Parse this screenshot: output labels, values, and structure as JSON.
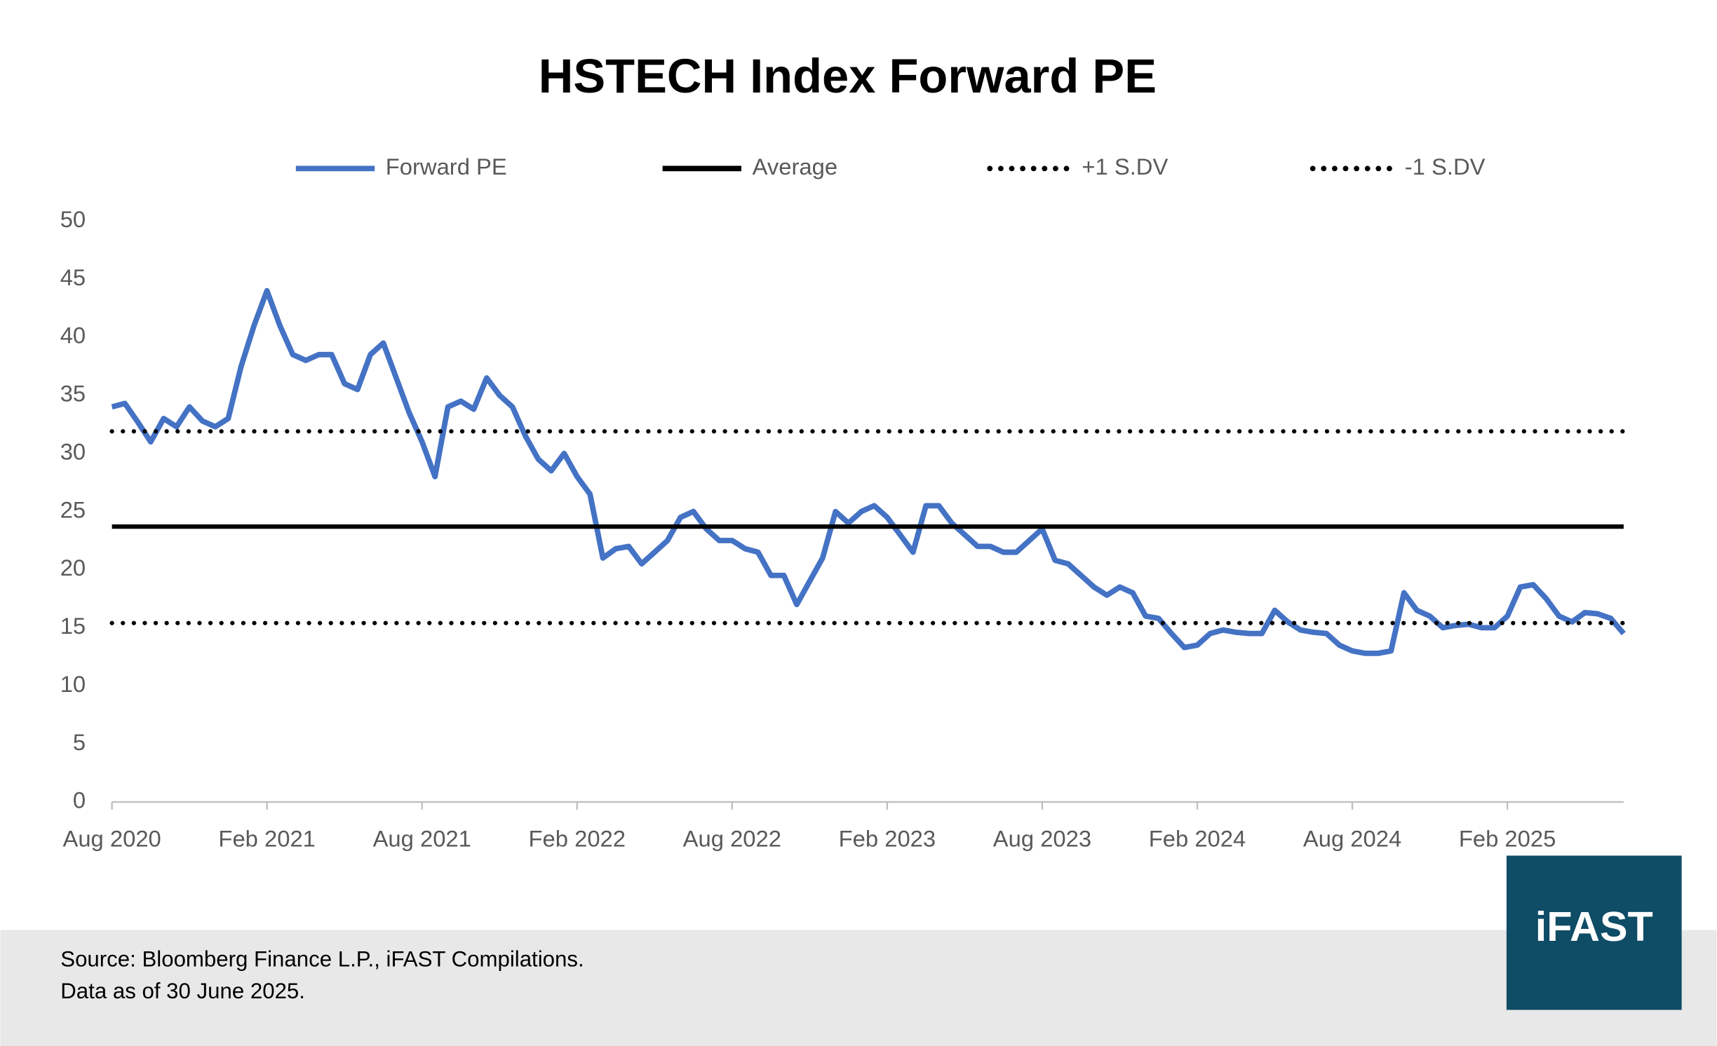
{
  "chart_data": {
    "type": "line",
    "title": "HSTECH Index Forward PE",
    "categories": [
      "Aug 2020",
      null,
      null,
      null,
      null,
      null,
      null,
      null,
      null,
      null,
      null,
      null,
      "Feb 2021",
      null,
      null,
      null,
      null,
      null,
      null,
      null,
      null,
      null,
      null,
      null,
      "Aug 2021",
      null,
      null,
      null,
      null,
      null,
      null,
      null,
      null,
      null,
      null,
      null,
      "Feb 2022",
      null,
      null,
      null,
      null,
      null,
      null,
      null,
      null,
      null,
      null,
      null,
      "Aug 2022",
      null,
      null,
      null,
      null,
      null,
      null,
      null,
      null,
      null,
      null,
      null,
      "Feb 2023",
      null,
      null,
      null,
      null,
      null,
      null,
      null,
      null,
      null,
      null,
      null,
      "Aug 2023",
      null,
      null,
      null,
      null,
      null,
      null,
      null,
      null,
      null,
      null,
      null,
      "Feb 2024",
      null,
      null,
      null,
      null,
      null,
      null,
      null,
      null,
      null,
      null,
      null,
      "Aug 2024",
      null,
      null,
      null,
      null,
      null,
      null,
      null,
      null,
      null,
      null,
      null,
      "Feb 2025",
      null,
      null,
      null,
      null,
      null,
      null,
      null,
      null,
      null
    ],
    "series": [
      {
        "name": "Forward PE",
        "color": "#4472c4",
        "style": "solid",
        "values": [
          34,
          34.3,
          32.7,
          31,
          33,
          32.3,
          34,
          32.8,
          32.3,
          33,
          37.5,
          41,
          44,
          41,
          38.5,
          38,
          38.5,
          38.5,
          36,
          35.5,
          38.5,
          39.5,
          36.5,
          33.5,
          31,
          28,
          34,
          34.5,
          33.8,
          36.5,
          35,
          34,
          31.5,
          29.5,
          28.5,
          30,
          28,
          26.5,
          21,
          21.8,
          22,
          20.5,
          21.5,
          22.5,
          24.5,
          25,
          23.5,
          22.5,
          22.5,
          21.8,
          21.5,
          19.5,
          19.5,
          17,
          19,
          21,
          25,
          24,
          25,
          25.5,
          24.5,
          23,
          21.5,
          25.5,
          25.5,
          24,
          23,
          22,
          22,
          21.5,
          21.5,
          22.5,
          23.5,
          20.8,
          20.5,
          19.5,
          18.5,
          17.8,
          18.5,
          18,
          16,
          15.8,
          14.5,
          13.3,
          13.5,
          14.5,
          14.8,
          14.6,
          14.5,
          14.5,
          16.5,
          15.5,
          14.8,
          14.6,
          14.5,
          13.5,
          13,
          12.8,
          12.8,
          13,
          18,
          16.5,
          16,
          15,
          15.2,
          15.3,
          15,
          15,
          16,
          18.5,
          18.7,
          17.5,
          16,
          15.5,
          16.3,
          16.2,
          15.8,
          14.5
        ]
      },
      {
        "name": "Average",
        "color": "#000000",
        "style": "solid",
        "value": 23.7
      },
      {
        "name": "+1 S.DV",
        "color": "#000000",
        "style": "dotted",
        "value": 31.9
      },
      {
        "name": "-1 S.DV",
        "color": "#000000",
        "style": "dotted",
        "value": 15.4
      }
    ],
    "ylim": [
      0,
      50
    ],
    "yticks": [
      0,
      5,
      10,
      15,
      20,
      25,
      30,
      35,
      40,
      45,
      50
    ],
    "grid": false,
    "legend": "top"
  },
  "footer": {
    "source": "Source: Bloomberg Finance L.P., iFAST Compilations.",
    "note": "Data as of 30 June 2025."
  },
  "logo": "iFAST"
}
